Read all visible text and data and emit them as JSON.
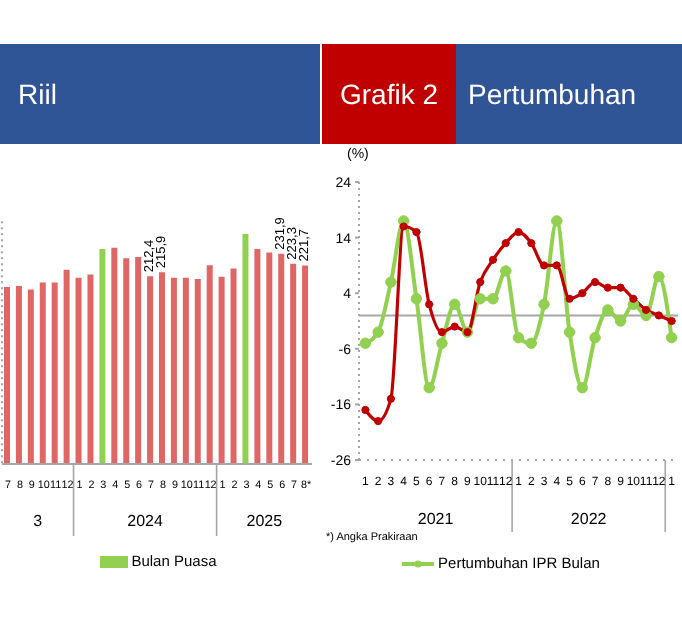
{
  "chart_data": [
    {
      "type": "bar",
      "title": "Riil",
      "x": [
        "2023-07",
        "2023-08",
        "2023-09",
        "2023-10",
        "2023-11",
        "2023-12",
        "2024-01",
        "2024-02",
        "2024-03",
        "2024-04",
        "2024-05",
        "2024-06",
        "2024-07",
        "2024-08",
        "2024-09",
        "2024-10",
        "2024-11",
        "2024-12",
        "2025-01",
        "2025-02",
        "2025-03",
        "2025-04",
        "2025-05",
        "2025-06",
        "2025-07",
        "2025-08"
      ],
      "xticks": [
        {
          "value": "2023-07",
          "label": "7"
        },
        {
          "value": "2023-08",
          "label": "8"
        },
        {
          "value": "2023-09",
          "label": "9"
        },
        {
          "value": "2023-10",
          "label": "10"
        },
        {
          "value": "2023-11",
          "label": "11"
        },
        {
          "value": "2023-12",
          "label": "12"
        },
        {
          "value": "2024-01",
          "label": "1"
        },
        {
          "value": "2024-02",
          "label": "2"
        },
        {
          "value": "2024-03",
          "label": "3"
        },
        {
          "value": "2024-04",
          "label": "4"
        },
        {
          "value": "2024-05",
          "label": "5"
        },
        {
          "value": "2024-06",
          "label": "6"
        },
        {
          "value": "2024-07",
          "label": "7"
        },
        {
          "value": "2024-08",
          "label": "8"
        },
        {
          "value": "2024-09",
          "label": "9"
        },
        {
          "value": "2024-10",
          "label": "10"
        },
        {
          "value": "2024-11",
          "label": "11"
        },
        {
          "value": "2024-12",
          "label": "12"
        },
        {
          "value": "2025-01",
          "label": "1"
        },
        {
          "value": "2025-02",
          "label": "2"
        },
        {
          "value": "2025-03",
          "label": "3"
        },
        {
          "value": "2025-04",
          "label": "4"
        },
        {
          "value": "2025-05",
          "label": "5"
        },
        {
          "value": "2025-06",
          "label": "6"
        },
        {
          "value": "2025-07",
          "label": "7"
        },
        {
          "value": "2025-08",
          "label": "8*"
        }
      ],
      "series": [
        {
          "color": "#e06666",
          "values": [
            203,
            204,
            201,
            207,
            207,
            218,
            211,
            214,
            null,
            237,
            228,
            229,
            212.4,
            215.9,
            211,
            211,
            210,
            222,
            212,
            219,
            null,
            236,
            233,
            231.9,
            223.3,
            221.7
          ],
          "value_labels": [
            null,
            null,
            null,
            null,
            null,
            null,
            null,
            null,
            null,
            null,
            null,
            null,
            "212,4",
            "215,9",
            null,
            null,
            null,
            null,
            null,
            null,
            null,
            null,
            null,
            "231,9",
            "223,3",
            "221,7"
          ]
        },
        {
          "name": "Bulan Puasa",
          "color": "#92d050",
          "values": [
            null,
            null,
            null,
            null,
            null,
            null,
            null,
            null,
            236,
            null,
            null,
            null,
            null,
            null,
            null,
            null,
            null,
            null,
            null,
            null,
            249,
            null,
            null,
            null,
            null,
            null
          ]
        }
      ],
      "xlim": [
        "2023-06-16",
        "2025-08-16"
      ],
      "ylim": [
        50,
        260
      ],
      "tick_labels": "x",
      "legend": "bottom",
      "annotations": [
        "3",
        "2024",
        "2025"
      ]
    },
    {
      "type": "line",
      "title": "Grafik 2",
      "subtitle": "Pertumbuhan",
      "ylabel": "(%)",
      "x": [
        "2021-01",
        "2021-02",
        "2021-03",
        "2021-04",
        "2021-05",
        "2021-06",
        "2021-07",
        "2021-08",
        "2021-09",
        "2021-10",
        "2021-11",
        "2021-12",
        "2022-01",
        "2022-02",
        "2022-03",
        "2022-04",
        "2022-05",
        "2022-06",
        "2022-07",
        "2022-08",
        "2022-09",
        "2022-10",
        "2022-11",
        "2022-12",
        "2023-01"
      ],
      "xticks": [
        {
          "value": "2021-01",
          "label": "1"
        },
        {
          "value": "2021-02",
          "label": "2"
        },
        {
          "value": "2021-03",
          "label": "3"
        },
        {
          "value": "2021-04",
          "label": "4"
        },
        {
          "value": "2021-05",
          "label": "5"
        },
        {
          "value": "2021-06",
          "label": "6"
        },
        {
          "value": "2021-07",
          "label": "7"
        },
        {
          "value": "2021-08",
          "label": "8"
        },
        {
          "value": "2021-09",
          "label": "9"
        },
        {
          "value": "2021-10",
          "label": "10"
        },
        {
          "value": "2021-11",
          "label": "11"
        },
        {
          "value": "2021-12",
          "label": "12"
        },
        {
          "value": "2022-01",
          "label": "1"
        },
        {
          "value": "2022-02",
          "label": "2"
        },
        {
          "value": "2022-03",
          "label": "3"
        },
        {
          "value": "2022-04",
          "label": "4"
        },
        {
          "value": "2022-05",
          "label": "5"
        },
        {
          "value": "2022-06",
          "label": "6"
        },
        {
          "value": "2022-07",
          "label": "7"
        },
        {
          "value": "2022-08",
          "label": "8"
        },
        {
          "value": "2022-09",
          "label": "9"
        },
        {
          "value": "2022-10",
          "label": "10"
        },
        {
          "value": "2022-11",
          "label": "11"
        },
        {
          "value": "2022-12",
          "label": "12"
        },
        {
          "value": "2023-01",
          "label": "1"
        }
      ],
      "series": [
        {
          "name": "Pertumbuhan IPR Bulan",
          "color": "#92d050",
          "values": [
            -5,
            -3,
            6,
            17,
            3,
            -13,
            -5,
            2,
            -3,
            3,
            3,
            8,
            -4,
            -5,
            2,
            17,
            -3,
            -13,
            -4,
            1,
            -1,
            2,
            0,
            7,
            -4
          ]
        },
        {
          "color": "#c00000",
          "values": [
            -17,
            -19,
            -15,
            16,
            15,
            2,
            -3,
            -2,
            -3,
            6,
            10,
            13,
            15,
            13,
            9,
            9,
            3,
            4,
            6,
            5,
            5,
            3,
            1,
            0,
            -1
          ]
        }
      ],
      "xlim": [
        "2020-12-16",
        "2023-01-16"
      ],
      "ylim": [
        -26,
        24
      ],
      "yticks": [
        24,
        14,
        4,
        -6,
        -16,
        -26
      ],
      "marker": "circle",
      "line_style": "solid",
      "legend": "bottom",
      "ref_lines": [
        {
          "axis": "y",
          "value": 0,
          "color": "#a6a6a6"
        }
      ],
      "annotations": [
        "2021",
        "2022",
        "*) Angka  Prakiraan"
      ]
    }
  ]
}
